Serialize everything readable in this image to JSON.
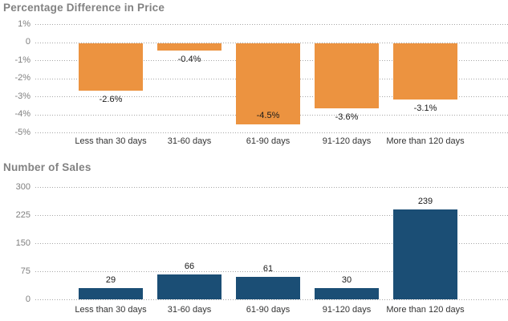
{
  "page": {
    "background": "#ffffff"
  },
  "colors": {
    "orange_bar": "#EC9340",
    "blue_bar": "#1B4E75",
    "title_text": "#828282",
    "tick_text": "#7F7F7F",
    "category_text": "#333333",
    "value_label_text": "#1A1A1A",
    "gridline": "#A6A6A6"
  },
  "chart_data": [
    {
      "type": "bar",
      "title": "Percentage Difference in Price",
      "categories": [
        "Less than 30 days",
        "31-60 days",
        "61-90 days",
        "91-120 days",
        "More than 120 days"
      ],
      "values": [
        -2.6,
        -0.4,
        -4.5,
        -3.6,
        -3.1
      ],
      "value_labels": [
        "-2.6%",
        "-0.4%",
        "-4.5%",
        "-3.6%",
        "-3.1%"
      ],
      "y_tick_labels": [
        "1%",
        "0",
        "-1%",
        "-2%",
        "-3%",
        "-4%",
        "-5%"
      ],
      "y_tick_values": [
        1,
        0,
        -1,
        -2,
        -3,
        -4,
        -5
      ],
      "ylim": [
        -5,
        1
      ],
      "xlabel": "",
      "ylabel": "",
      "grid": "horizontal-dotted",
      "legend": "none",
      "bar_color": "#EC9340",
      "value_label_position": "below-bar"
    },
    {
      "type": "bar",
      "title": "Number of Sales",
      "categories": [
        "Less than 30 days",
        "31-60 days",
        "61-90 days",
        "91-120 days",
        "More than 120 days"
      ],
      "values": [
        29,
        66,
        61,
        30,
        239
      ],
      "value_labels": [
        "29",
        "66",
        "61",
        "30",
        "239"
      ],
      "y_tick_labels": [
        "300",
        "225",
        "150",
        "75",
        "0"
      ],
      "y_tick_values": [
        300,
        225,
        150,
        75,
        0
      ],
      "ylim": [
        0,
        300
      ],
      "xlabel": "",
      "ylabel": "",
      "grid": "horizontal-dotted",
      "legend": "none",
      "bar_color": "#1B4E75",
      "value_label_position": "above-bar"
    }
  ]
}
